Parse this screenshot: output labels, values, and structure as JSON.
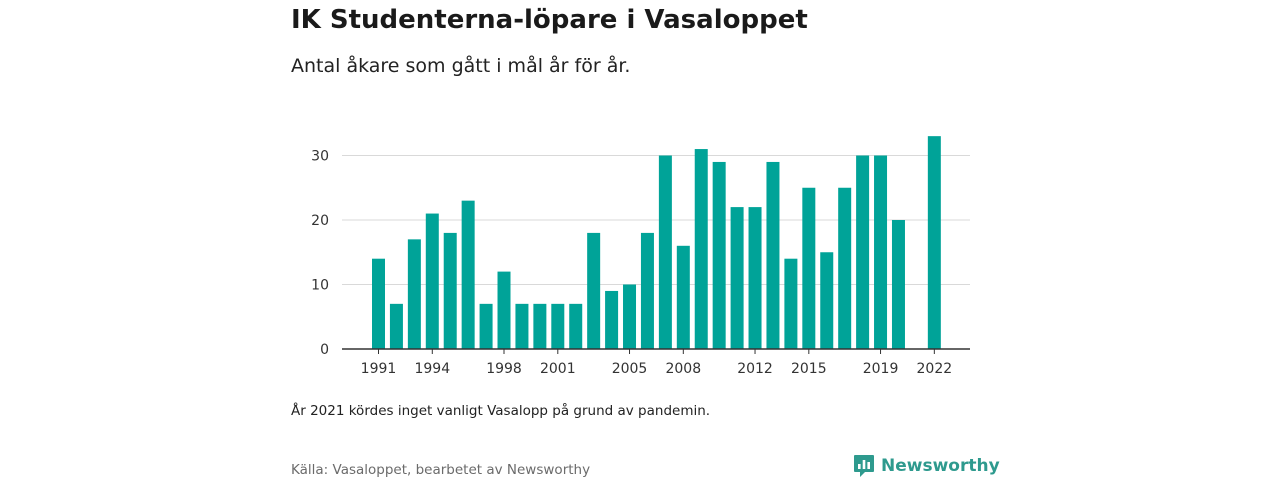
{
  "title": "IK Studenterna-löpare i Vasaloppet",
  "subtitle": "Antal åkare som gått i mål år för år.",
  "note": "År 2021 kördes inget vanligt Vasalopp på grund av pandemin.",
  "source": "Källa: Vasaloppet, bearbetet av Newsworthy",
  "brand": {
    "name": "Newsworthy",
    "logo_icon": "bar-chart-speech-bubble-icon",
    "color": "#2e9a8e"
  },
  "colors": {
    "bar": "#00a398",
    "grid": "#d9d9d9",
    "axis": "#333333"
  },
  "chart_data": {
    "type": "bar",
    "x": [
      1991,
      1992,
      1993,
      1994,
      1995,
      1996,
      1997,
      1998,
      1999,
      2000,
      2001,
      2002,
      2003,
      2004,
      2005,
      2006,
      2007,
      2008,
      2009,
      2010,
      2011,
      2012,
      2013,
      2014,
      2015,
      2016,
      2017,
      2018,
      2019,
      2020,
      2021,
      2022
    ],
    "values": [
      14,
      7,
      17,
      21,
      18,
      23,
      7,
      12,
      7,
      7,
      7,
      7,
      18,
      9,
      10,
      18,
      30,
      16,
      31,
      29,
      22,
      22,
      29,
      14,
      25,
      15,
      25,
      30,
      30,
      20,
      null,
      33
    ],
    "x_tick_labels": [
      "1991",
      "1994",
      "1998",
      "2001",
      "2005",
      "2008",
      "2012",
      "2015",
      "2019",
      "2022"
    ],
    "y_ticks": [
      0,
      10,
      20,
      30
    ],
    "ylim": [
      0,
      33
    ],
    "grid": true,
    "legend": "none"
  }
}
